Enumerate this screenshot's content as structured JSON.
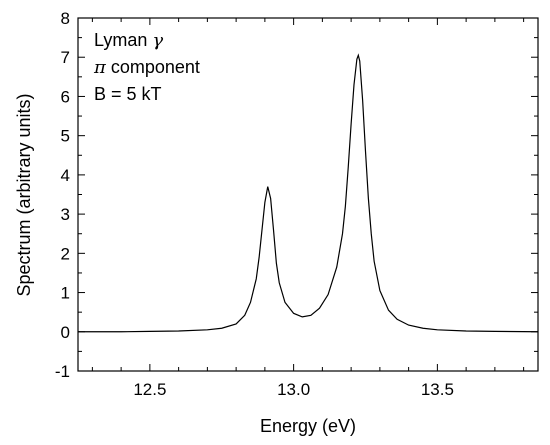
{
  "chart_data": {
    "type": "line",
    "title": "",
    "xlabel": "Energy (eV)",
    "ylabel": "Spectrum (arbitrary units)",
    "xlim": [
      12.25,
      13.85
    ],
    "ylim": [
      -1,
      8
    ],
    "x_ticks": [
      12.5,
      13.0,
      13.5
    ],
    "x_tick_labels": [
      "12.5",
      "13.0",
      "13.5"
    ],
    "y_ticks": [
      -1,
      0,
      1,
      2,
      3,
      4,
      5,
      6,
      7,
      8
    ],
    "y_tick_labels": [
      "-1",
      "0",
      "1",
      "2",
      "3",
      "4",
      "5",
      "6",
      "7",
      "8"
    ],
    "grid": false,
    "annotations": [
      {
        "text": "Lyman ",
        "symbol": "γ"
      },
      {
        "text": " component",
        "symbol": "π",
        "symbol_first": true
      },
      {
        "text": "B = 5 kT"
      }
    ],
    "series": [
      {
        "x": [
          12.25,
          12.4,
          12.5,
          12.6,
          12.7,
          12.75,
          12.8,
          12.83,
          12.85,
          12.87,
          12.88,
          12.89,
          12.9,
          12.91,
          12.92,
          12.93,
          12.94,
          12.95,
          12.97,
          13.0,
          13.03,
          13.06,
          13.09,
          13.12,
          13.15,
          13.17,
          13.18,
          13.19,
          13.2,
          13.21,
          13.22,
          13.225,
          13.23,
          13.24,
          13.25,
          13.26,
          13.27,
          13.28,
          13.3,
          13.33,
          13.36,
          13.4,
          13.45,
          13.5,
          13.6,
          13.7,
          13.85
        ],
        "y": [
          0.0,
          0.0,
          0.01,
          0.02,
          0.05,
          0.09,
          0.2,
          0.42,
          0.75,
          1.35,
          1.9,
          2.6,
          3.3,
          3.7,
          3.4,
          2.6,
          1.75,
          1.25,
          0.75,
          0.47,
          0.38,
          0.42,
          0.6,
          0.95,
          1.65,
          2.5,
          3.2,
          4.2,
          5.3,
          6.3,
          6.95,
          7.05,
          6.9,
          5.9,
          4.6,
          3.4,
          2.5,
          1.8,
          1.05,
          0.55,
          0.32,
          0.17,
          0.09,
          0.05,
          0.02,
          0.01,
          0.0
        ],
        "color": "#000000"
      }
    ]
  }
}
